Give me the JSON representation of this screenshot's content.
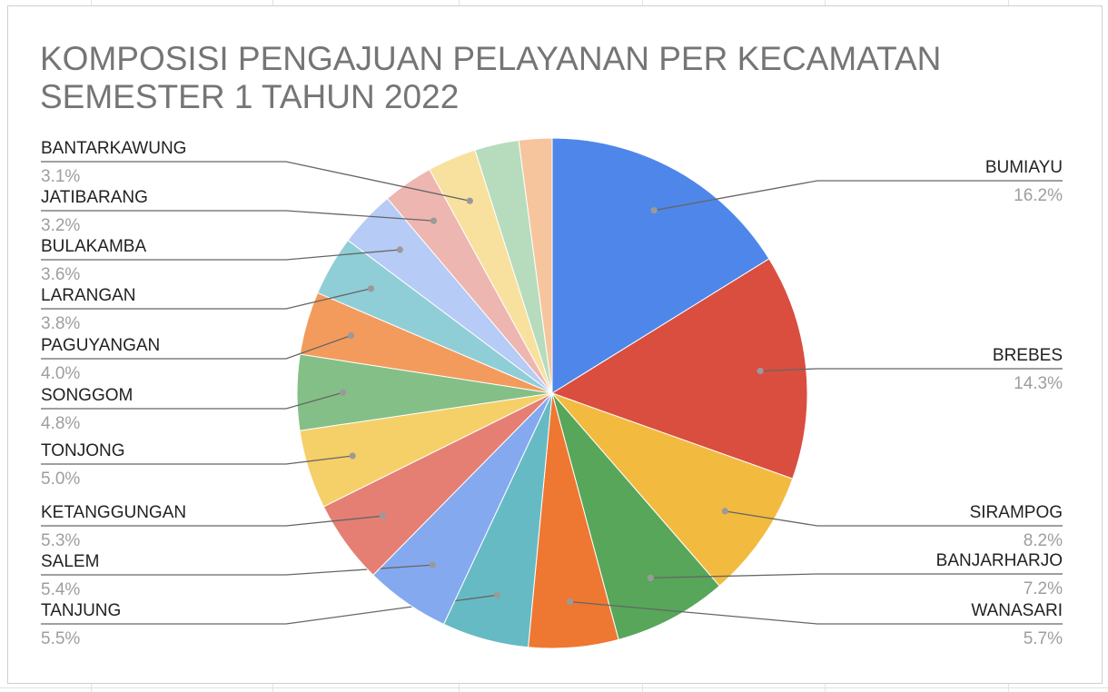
{
  "chart_data": {
    "type": "pie",
    "title": "KOMPOSISI PENGAJUAN PELAYANAN PER KECAMATAN SEMESTER 1 TAHUN 2022",
    "slices": [
      {
        "name": "BUMIAYU",
        "pct_label": "16.2%",
        "value": 16.2,
        "color": "#4e87e9"
      },
      {
        "name": "BREBES",
        "pct_label": "14.3%",
        "value": 14.3,
        "color": "#d94e3f"
      },
      {
        "name": "SIRAMPOG",
        "pct_label": "8.2%",
        "value": 8.2,
        "color": "#f2bb40"
      },
      {
        "name": "BANJARHARJO",
        "pct_label": "7.2%",
        "value": 7.2,
        "color": "#57a65a"
      },
      {
        "name": "WANASARI",
        "pct_label": "5.7%",
        "value": 5.7,
        "color": "#ee7732"
      },
      {
        "name": "TANJUNG",
        "pct_label": "5.5%",
        "value": 5.5,
        "color": "#66bac4"
      },
      {
        "name": "SALEM",
        "pct_label": "5.4%",
        "value": 5.4,
        "color": "#85a9ef"
      },
      {
        "name": "KETANGGUNGAN",
        "pct_label": "5.3%",
        "value": 5.3,
        "color": "#e57f73"
      },
      {
        "name": "TONJONG",
        "pct_label": "5.0%",
        "value": 5.0,
        "color": "#f5cf68"
      },
      {
        "name": "SONGGOM",
        "pct_label": "4.8%",
        "value": 4.8,
        "color": "#84bf87"
      },
      {
        "name": "PAGUYANGAN",
        "pct_label": "4.0%",
        "value": 4.0,
        "color": "#f39b5c"
      },
      {
        "name": "LARANGAN",
        "pct_label": "3.8%",
        "value": 3.8,
        "color": "#90ced7"
      },
      {
        "name": "BULAKAMBA",
        "pct_label": "3.6%",
        "value": 3.6,
        "color": "#b6cbf5"
      },
      {
        "name": "JATIBARANG",
        "pct_label": "3.2%",
        "value": 3.2,
        "color": "#eeb6b0"
      },
      {
        "name": "BANTARKAWUNG",
        "pct_label": "3.1%",
        "value": 3.1,
        "color": "#f8e19e"
      },
      {
        "name": "",
        "pct_label": "",
        "value": 2.8,
        "color": "#b7dcbd"
      },
      {
        "name": "",
        "pct_label": "",
        "value": 2.1,
        "color": "#f6c59e"
      }
    ]
  }
}
